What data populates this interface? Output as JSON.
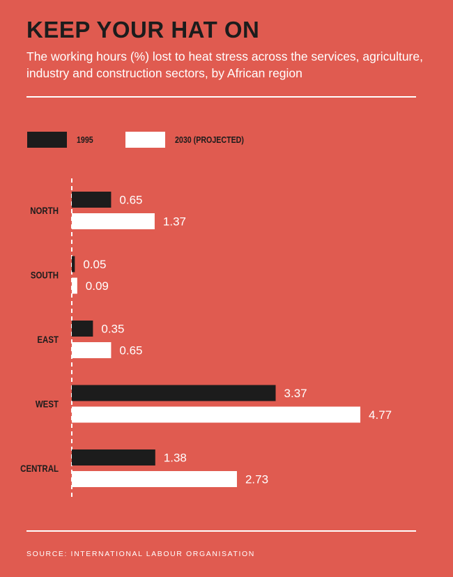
{
  "header": {
    "title": "KEEP YOUR HAT ON",
    "subtitle": "The working hours (%) lost to heat stress across the services, agriculture, industry and construction sectors, by African region"
  },
  "footer": {
    "source": "SOURCE: INTERNATIONAL LABOUR ORGANISATION"
  },
  "colors": {
    "background": "#e05b50",
    "series_1995": "#1c1c1c",
    "series_2030": "#ffffff"
  },
  "chart_data": {
    "type": "bar",
    "orientation": "horizontal",
    "title": "KEEP YOUR HAT ON",
    "subtitle": "The working hours (%) lost to heat stress across the services, agriculture, industry and construction sectors, by African region",
    "categories": [
      "NORTH",
      "SOUTH",
      "EAST",
      "WEST",
      "CENTRAL"
    ],
    "series": [
      {
        "name": "1995",
        "values": [
          0.65,
          0.05,
          0.35,
          3.37,
          1.38
        ],
        "color": "#1c1c1c"
      },
      {
        "name": "2030 (PROJECTED)",
        "values": [
          1.37,
          0.09,
          0.65,
          4.77,
          2.73
        ],
        "color": "#ffffff"
      }
    ],
    "value_labels": [
      [
        "0.65",
        "0.05",
        "0.35",
        "3.37",
        "1.38"
      ],
      [
        "1.37",
        "0.09",
        "0.65",
        "4.77",
        "2.73"
      ]
    ],
    "xlim": [
      0,
      4.77
    ],
    "legend": "top-left",
    "grid": false,
    "baseline": "dashed"
  }
}
